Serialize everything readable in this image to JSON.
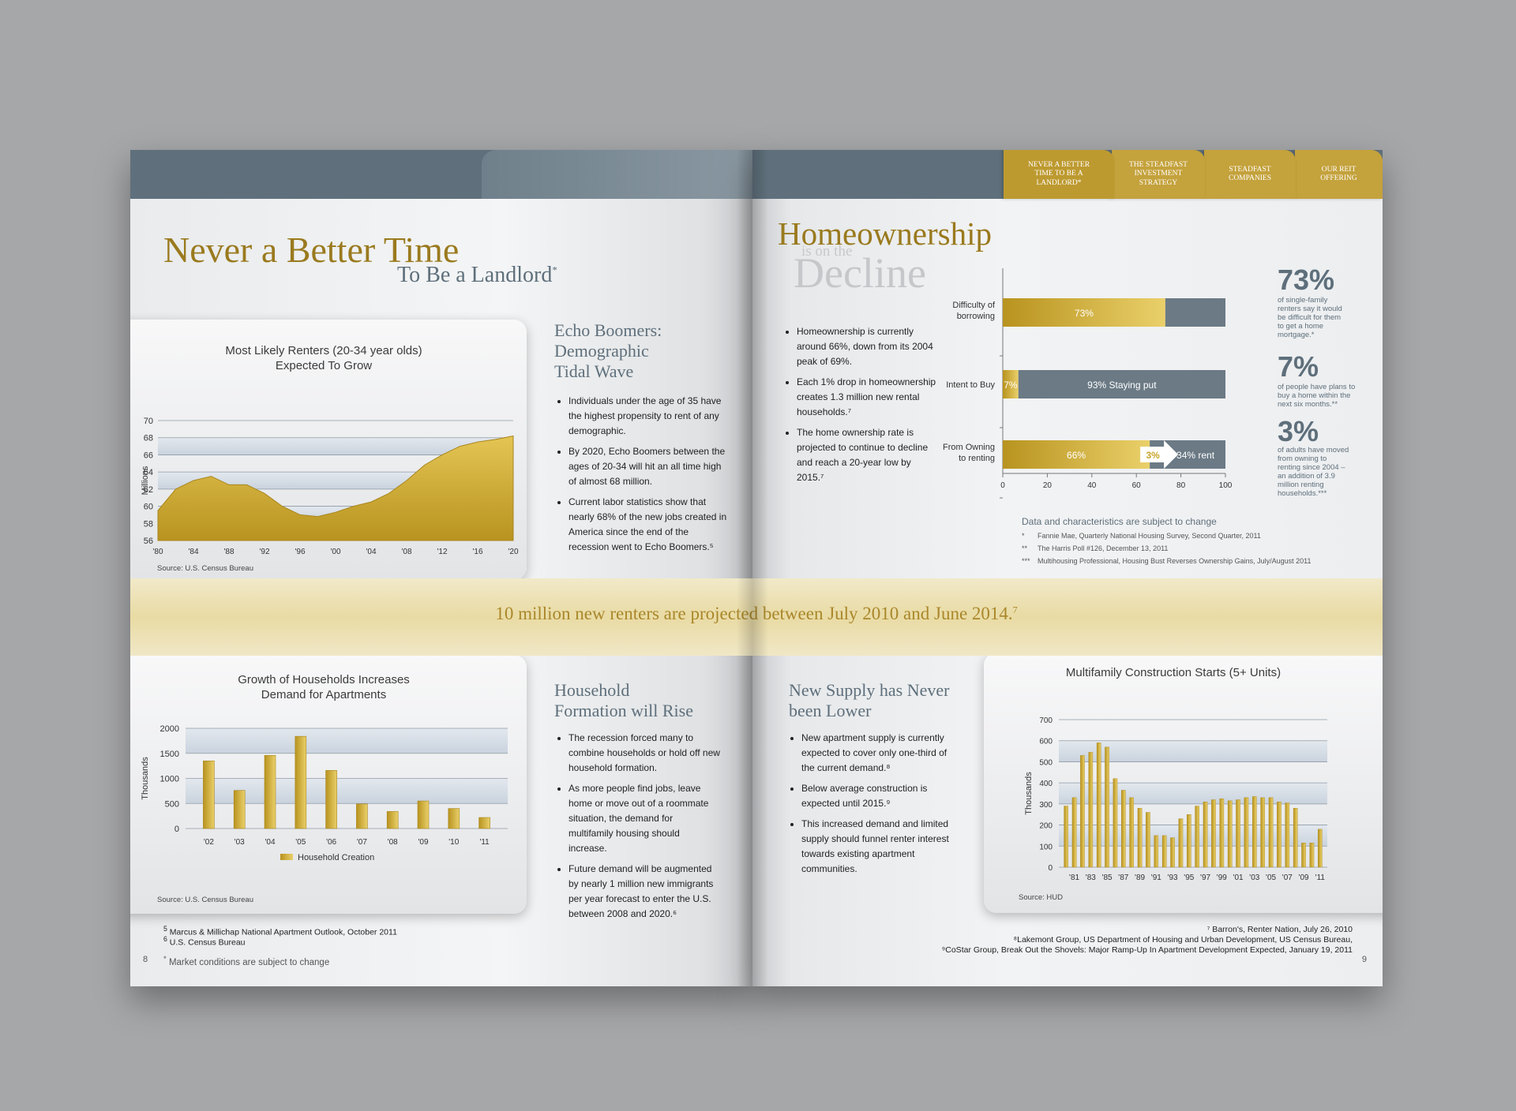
{
  "nav": {
    "tabs": [
      "NEVER A BETTER TIME TO BE A LANDLORD*",
      "THE STEADFAST INVESTMENT STRATEGY",
      "STEADFAST COMPANIES",
      "OUR REIT OFFERING"
    ]
  },
  "left_page": {
    "title_line1": "Never a Better Time",
    "title_line2": "To Be a Landlord",
    "title_mark": "*",
    "page_number": "8",
    "footnote_5": "Marcus & Millichap National Apartment Outlook, October 2011",
    "footnote_6": "U.S. Census Bureau",
    "footnote_star": "Market conditions are subject to change",
    "section1": {
      "heading": [
        "Echo Boomers:",
        "Demographic",
        "Tidal Wave"
      ],
      "bullets": [
        "Individuals under the age of 35 have the highest propensity to rent of any demographic.",
        "By 2020, Echo Boomers between the ages of 20-34 will hit an all time high of almost 68 million.",
        "Current labor statistics show that nearly 68% of the new jobs created in America since the end of the recession went to Echo Boomers.⁵"
      ]
    },
    "section2": {
      "heading": [
        "Household",
        "Formation will Rise"
      ],
      "bullets": [
        "The recession forced many to combine households or hold off new household formation.",
        "As more people find jobs, leave home or move out of a roommate situation, the demand for multifamily housing should increase.",
        "Future demand will be augmented by nearly 1 million new immigrants per year forecast to enter the U.S. between 2008 and 2020.⁶"
      ]
    }
  },
  "band": {
    "text": "10 million new renters are projected between July 2010 and June 2014.",
    "mark": "7"
  },
  "right_page": {
    "title_line1": "Homeownership",
    "title_small": "is on the",
    "title_line2": "Decline",
    "page_number": "9",
    "bullets": [
      "Homeownership is currently around 66%, down from its 2004 peak of 69%.",
      "Each 1% drop in homeownership creates 1.3 million new rental households.⁷",
      "The home ownership rate is projected to continue to decline and reach a 20-year low by 2015.⁷"
    ],
    "stats": [
      {
        "value": "73%",
        "text": "of single-family renters say it would be difficult for them to get a home mortgage.*"
      },
      {
        "value": "7%",
        "text": "of people have plans to buy a home within the next six months.**"
      },
      {
        "value": "3%",
        "text": "of adults have moved from owning to renting since 2004 – an addition of 3.9 million renting households.***"
      }
    ],
    "data_note": "Data and characteristics are subject to change",
    "sources": [
      {
        "mark": "*",
        "text": "Fannie Mae, Quarterly National Housing Survey, Second Quarter, 2011"
      },
      {
        "mark": "**",
        "text": "The Harris Poll #126, December 13, 2011"
      },
      {
        "mark": "***",
        "text": "Multihousing Professional, Housing Bust Reverses Ownership Gains, July/August 2011"
      }
    ],
    "section3": {
      "heading": [
        "New Supply has Never",
        "been Lower"
      ],
      "bullets": [
        "New apartment supply is currently expected to cover only one-third of the current demand.⁸",
        "Below average construction is expected until 2015.⁹",
        "This increased demand and limited supply should funnel renter interest towards existing apartment communities."
      ]
    },
    "footnote_7": "⁷ Barron's, Renter Nation, July 26, 2010",
    "footnote_8": "⁸Lakemont Group, US Department of Housing and Urban Development, US Census Bureau,",
    "footnote_9": "⁹CoStar Group,  Break Out the Shovels: Major Ramp-Up In Apartment Development Expected, January 19, 2011"
  },
  "chart_data": [
    {
      "type": "area",
      "title": "Most Likely Renters (20-34 year olds) Expected To Grow",
      "ylabel": "Millions",
      "source": "Source: U.S. Census Bureau",
      "x_ticks": [
        "'80",
        "'84",
        "'88",
        "'92",
        "'96",
        "'00",
        "'04",
        "'08",
        "'12",
        "'16",
        "'20"
      ],
      "x": [
        1980,
        1982,
        1984,
        1986,
        1988,
        1990,
        1992,
        1994,
        1996,
        1998,
        2000,
        2002,
        2004,
        2006,
        2008,
        2010,
        2012,
        2014,
        2016,
        2018,
        2020
      ],
      "values": [
        59.5,
        62.0,
        63.0,
        63.5,
        62.5,
        62.5,
        61.5,
        60.0,
        59.0,
        58.8,
        59.3,
        60.0,
        60.5,
        61.5,
        63.0,
        64.8,
        66.0,
        67.0,
        67.5,
        67.8,
        68.2
      ],
      "ylim": [
        56,
        70
      ],
      "y_ticks": [
        56,
        58,
        60,
        62,
        64,
        66,
        68,
        70
      ],
      "color": "#c9a52c"
    },
    {
      "type": "bar",
      "title": "Growth of Households Increases Demand for Apartments",
      "ylabel": "Thousands",
      "source": "Source: U.S. Census Bureau",
      "legend": "Household Creation",
      "categories": [
        "'02",
        "'03",
        "'04",
        "'05",
        "'06",
        "'07",
        "'08",
        "'09",
        "'10",
        "'11"
      ],
      "values": [
        1350,
        760,
        1460,
        1840,
        1160,
        490,
        340,
        550,
        400,
        220
      ],
      "ylim": [
        0,
        2000
      ],
      "y_ticks": [
        0,
        500,
        1000,
        1500,
        2000
      ],
      "color": "#c9a52c"
    },
    {
      "type": "bar",
      "orientation": "horizontal-stacked",
      "x_ticks": [
        0,
        20,
        40,
        60,
        80,
        100
      ],
      "xlim": [
        0,
        100
      ],
      "rows": [
        {
          "label": "Difficulty of borrowing",
          "segments": [
            {
              "value": 73,
              "text": "73%"
            },
            {
              "value": 27,
              "text": ""
            }
          ]
        },
        {
          "label": "Intent to Buy",
          "segments": [
            {
              "value": 7,
              "text": "7%"
            },
            {
              "value": 93,
              "text": "93% Staying put"
            }
          ]
        },
        {
          "label": "From Owning to renting",
          "segments": [
            {
              "value": 66,
              "text": "66%"
            },
            {
              "value": 34,
              "text": "34% rent"
            }
          ],
          "arrow_label": "3%"
        }
      ],
      "colors": {
        "gold": "#c9a52c",
        "slate": "#6b7a85"
      }
    },
    {
      "type": "bar",
      "title": "Multifamily Construction Starts (5+ Units)",
      "ylabel": "Thousands",
      "source": "Source: HUD",
      "x_ticks": [
        "'81",
        "'83",
        "'85",
        "'87",
        "'89",
        "'91",
        "'93",
        "'95",
        "'97",
        "'99",
        "'01",
        "'03",
        "'05",
        "'07",
        "'09",
        "'11"
      ],
      "categories": [
        "1980",
        "1981",
        "1982",
        "1983",
        "1984",
        "1985",
        "1986",
        "1987",
        "1988",
        "1989",
        "1990",
        "1991",
        "1992",
        "1993",
        "1994",
        "1995",
        "1996",
        "1997",
        "1998",
        "1999",
        "2000",
        "2001",
        "2002",
        "2003",
        "2004",
        "2005",
        "2006",
        "2007",
        "2008",
        "2009",
        "2010",
        "2011"
      ],
      "values": [
        290,
        330,
        530,
        545,
        590,
        570,
        420,
        365,
        330,
        280,
        260,
        150,
        150,
        140,
        230,
        250,
        290,
        310,
        320,
        325,
        315,
        320,
        330,
        335,
        330,
        330,
        310,
        305,
        280,
        115,
        115,
        180
      ],
      "ylim": [
        0,
        700
      ],
      "y_ticks": [
        0,
        100,
        200,
        300,
        400,
        500,
        600,
        700
      ],
      "color": "#c9a52c"
    }
  ]
}
